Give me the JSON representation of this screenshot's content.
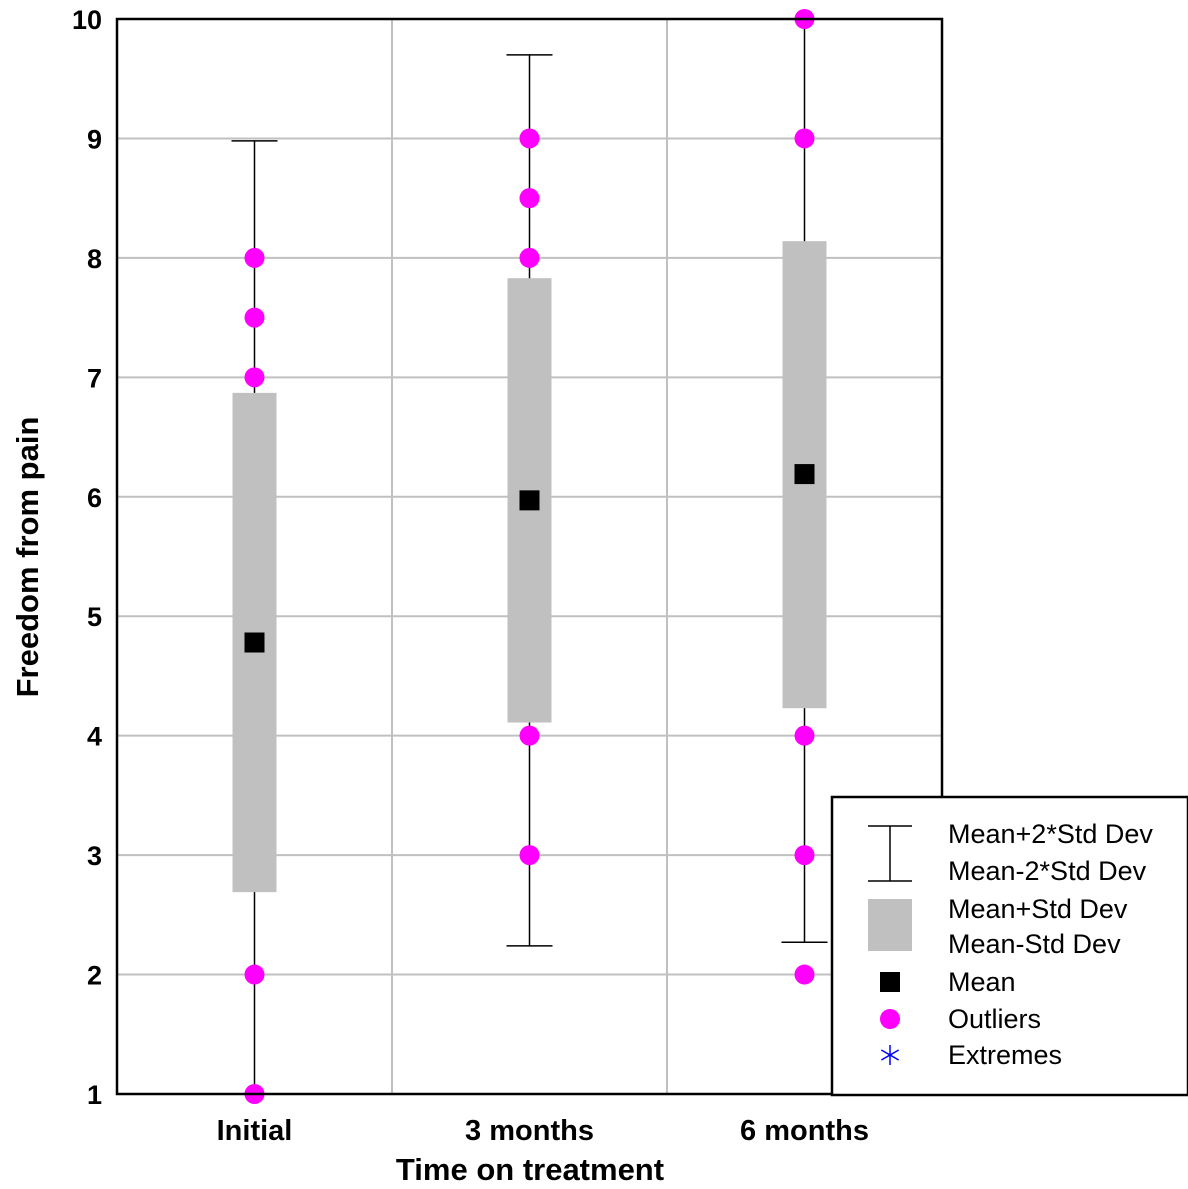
{
  "chart_data": {
    "type": "box",
    "xlabel": "Time on treatment",
    "ylabel": "Freedom from pain",
    "ylim": [
      1,
      10
    ],
    "yticks": [
      "1",
      "2",
      "3",
      "4",
      "5",
      "6",
      "7",
      "8",
      "9",
      "10"
    ],
    "grid": true,
    "categories": [
      "Initial",
      "3 months",
      "6 months"
    ],
    "groups": [
      {
        "category": "Initial",
        "mean": 4.78,
        "mean_minus_sd": 2.69,
        "mean_plus_sd": 6.87,
        "mean_minus_2sd": 1.0,
        "mean_plus_2sd": 8.98,
        "outliers": [
          1,
          2,
          7,
          7.5,
          8
        ],
        "extremes": []
      },
      {
        "category": "3 months",
        "mean": 5.97,
        "mean_minus_sd": 4.11,
        "mean_plus_sd": 7.83,
        "mean_minus_2sd": 2.24,
        "mean_plus_2sd": 9.7,
        "outliers": [
          3,
          4,
          8,
          8.5,
          9
        ],
        "extremes": []
      },
      {
        "category": "6 months",
        "mean": 6.19,
        "mean_minus_sd": 4.23,
        "mean_plus_sd": 8.14,
        "mean_minus_2sd": 2.27,
        "mean_plus_2sd": 10.0,
        "outliers": [
          2,
          3,
          4,
          9,
          10
        ],
        "extremes": []
      }
    ],
    "legend": {
      "placement": "bottom-right",
      "entries": [
        {
          "symbol": "whisker",
          "labels": [
            "Mean+2*Std Dev",
            "Mean-2*Std Dev"
          ]
        },
        {
          "symbol": "box",
          "labels": [
            "Mean+Std Dev",
            "Mean-Std Dev"
          ]
        },
        {
          "symbol": "mean-square",
          "labels": [
            "Mean"
          ]
        },
        {
          "symbol": "outlier-dot",
          "labels": [
            "Outliers"
          ]
        },
        {
          "symbol": "extreme-asterisk",
          "labels": [
            "Extremes"
          ]
        }
      ]
    },
    "colors": {
      "box": "#c0c0c0",
      "mean": "#000000",
      "outlier": "#ff00ff",
      "extreme": "#0000ff",
      "grid": "#c0c0c0",
      "frame": "#000000"
    }
  }
}
